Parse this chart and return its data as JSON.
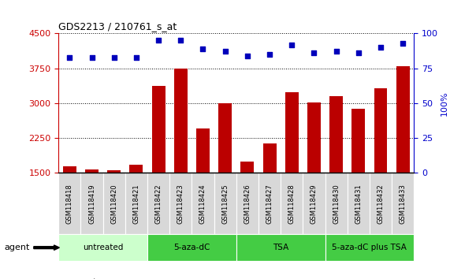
{
  "title": "GDS2213 / 210761_s_at",
  "categories": [
    "GSM118418",
    "GSM118419",
    "GSM118420",
    "GSM118421",
    "GSM118422",
    "GSM118423",
    "GSM118424",
    "GSM118425",
    "GSM118426",
    "GSM118427",
    "GSM118428",
    "GSM118429",
    "GSM118430",
    "GSM118431",
    "GSM118432",
    "GSM118433"
  ],
  "bar_values": [
    1650,
    1580,
    1560,
    1670,
    3380,
    3750,
    2450,
    3000,
    1750,
    2130,
    3230,
    3010,
    3150,
    2880,
    3330,
    3800
  ],
  "dot_values": [
    83,
    83,
    83,
    83,
    95,
    95,
    89,
    87,
    84,
    85,
    92,
    86,
    87,
    86,
    90,
    93
  ],
  "bar_color": "#bb0000",
  "dot_color": "#0000bb",
  "ylim_left": [
    1500,
    4500
  ],
  "ylim_right": [
    0,
    100
  ],
  "yticks_left": [
    1500,
    2250,
    3000,
    3750,
    4500
  ],
  "yticks_right": [
    0,
    25,
    50,
    75,
    100
  ],
  "groups": [
    {
      "label": "untreated",
      "start": 0,
      "end": 3,
      "color": "#ccffcc"
    },
    {
      "label": "5-aza-dC",
      "start": 4,
      "end": 7,
      "color": "#44cc44"
    },
    {
      "label": "TSA",
      "start": 8,
      "end": 11,
      "color": "#44cc44"
    },
    {
      "label": "5-aza-dC plus TSA",
      "start": 12,
      "end": 15,
      "color": "#44cc44"
    }
  ],
  "legend_count_color": "#cc0000",
  "legend_dot_color": "#0000cc",
  "agent_label": "agent",
  "bg_color": "#ffffff"
}
